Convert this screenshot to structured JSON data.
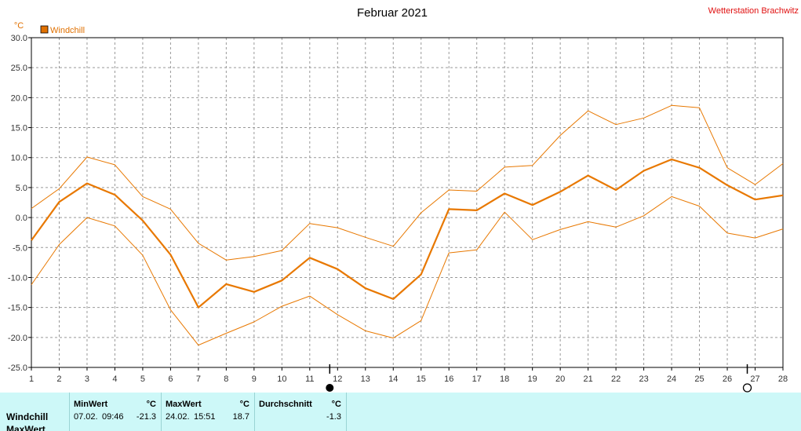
{
  "title": "Februar 2021",
  "station": "Wetterstation Brachwitz",
  "unit": "°C",
  "legend": [
    {
      "label": "Windchill",
      "color": "#e07000"
    }
  ],
  "chart_data": {
    "type": "line",
    "title": "Februar 2021",
    "ylabel": "°C",
    "xlabel": "",
    "x": [
      1,
      2,
      3,
      4,
      5,
      6,
      7,
      8,
      9,
      10,
      11,
      12,
      13,
      14,
      15,
      16,
      17,
      18,
      19,
      20,
      21,
      22,
      23,
      24,
      25,
      26,
      27,
      28
    ],
    "xlim": [
      1,
      28
    ],
    "ylim": [
      -25,
      30
    ],
    "yticks": [
      -25,
      -20,
      -15,
      -10,
      -5,
      0,
      5,
      10,
      15,
      20,
      25,
      30
    ],
    "ytick_labels": [
      "-25.0",
      "-20.0",
      "-15.0",
      "-10.0",
      "-5.0",
      "0.0",
      "5.0",
      "10.0",
      "15.0",
      "20.0",
      "25.0",
      "30.0"
    ],
    "grid": true,
    "legend_position": "top-left",
    "series": [
      {
        "name": "Windchill",
        "role": "mean",
        "color": "#e87800",
        "values": [
          -3.8,
          2.6,
          5.7,
          3.8,
          -0.5,
          -6.2,
          -15.0,
          -11.1,
          -12.4,
          -10.5,
          -6.7,
          -8.6,
          -11.8,
          -13.6,
          -9.5,
          1.4,
          1.2,
          4.0,
          2.1,
          4.3,
          7.0,
          4.6,
          7.8,
          9.7,
          8.3,
          5.4,
          3.0,
          3.7
        ]
      },
      {
        "role": "max",
        "color": "#e87800",
        "values": [
          1.5,
          4.8,
          10.1,
          8.8,
          3.5,
          1.4,
          -4.3,
          -7.1,
          -6.5,
          -5.5,
          -1.0,
          -1.7,
          -3.3,
          -4.8,
          0.8,
          4.6,
          4.4,
          8.4,
          8.7,
          13.7,
          17.8,
          15.5,
          16.6,
          18.7,
          18.3,
          8.3,
          5.5,
          9.0
        ]
      },
      {
        "role": "min",
        "color": "#e87800",
        "values": [
          -11.2,
          -4.5,
          0.0,
          -1.4,
          -6.3,
          -15.4,
          -21.3,
          -19.3,
          -17.4,
          -14.8,
          -13.1,
          -16.2,
          -18.9,
          -20.1,
          -17.2,
          -5.9,
          -5.4,
          0.9,
          -3.7,
          -2.0,
          -0.7,
          -1.6,
          0.3,
          3.5,
          1.9,
          -2.6,
          -3.4,
          -1.9
        ]
      }
    ],
    "markers": [
      {
        "x": 12,
        "type": "new-moon"
      },
      {
        "x": 27,
        "type": "full-moon"
      }
    ]
  },
  "stats": {
    "row_label": "Windchill",
    "row_label_2": "MaxWert",
    "min": {
      "header": "MinWert",
      "unit": "°C",
      "date": "07.02.",
      "time": "09:46",
      "value": "-21.3"
    },
    "max": {
      "header": "MaxWert",
      "unit": "°C",
      "date": "24.02.",
      "time": "15:51",
      "value": "18.7"
    },
    "avg": {
      "header": "Durchschnitt",
      "unit": "°C",
      "value": "-1.3"
    }
  }
}
